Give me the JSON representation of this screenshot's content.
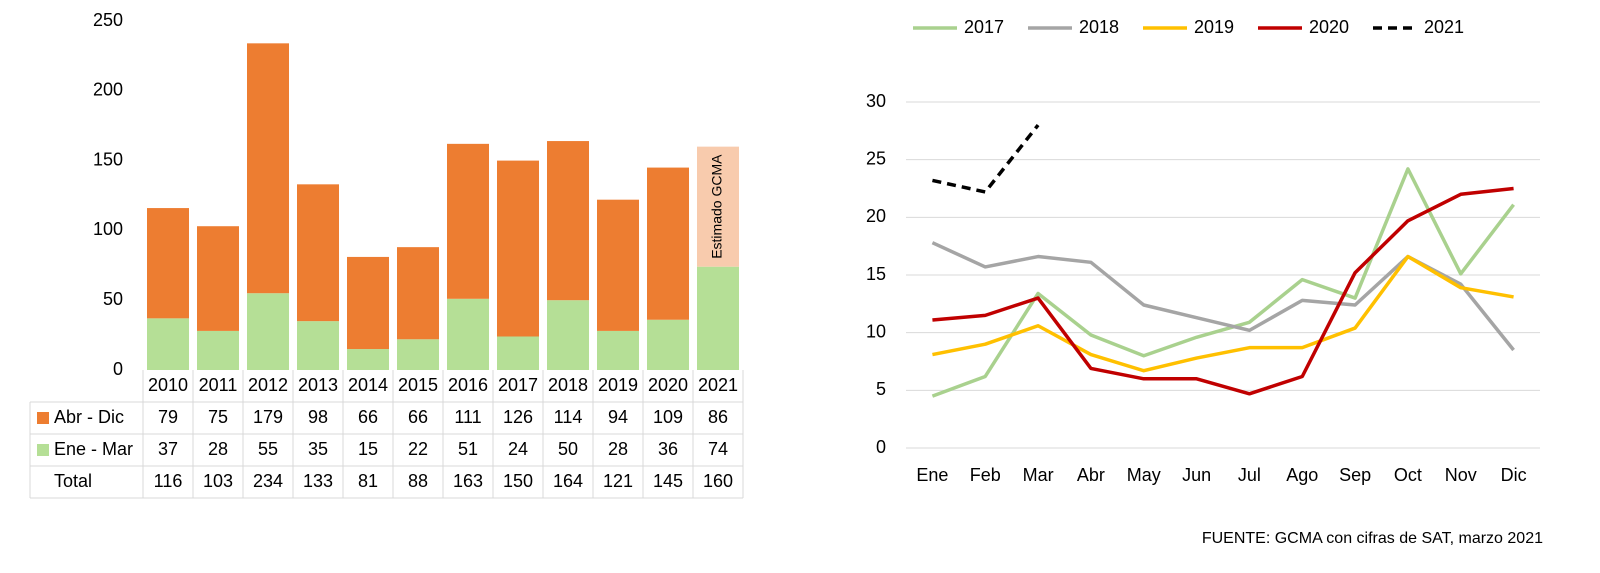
{
  "chart_data": [
    {
      "type": "stacked_bar",
      "categories": [
        "2010",
        "2011",
        "2012",
        "2013",
        "2014",
        "2015",
        "2016",
        "2017",
        "2018",
        "2019",
        "2020",
        "2021"
      ],
      "series": [
        {
          "name": "Ene - Mar",
          "color": "#b5df96",
          "values": [
            37,
            28,
            55,
            35,
            15,
            22,
            51,
            24,
            50,
            28,
            36,
            74
          ]
        },
        {
          "name": "Abr - Dic",
          "color": "#ed7d31",
          "values": [
            79,
            75,
            179,
            98,
            66,
            66,
            111,
            126,
            114,
            94,
            109,
            86
          ],
          "colors": [
            "#ed7d31",
            "#ed7d31",
            "#ed7d31",
            "#ed7d31",
            "#ed7d31",
            "#ed7d31",
            "#ed7d31",
            "#ed7d31",
            "#ed7d31",
            "#ed7d31",
            "#ed7d31",
            "#f8cbad"
          ]
        }
      ],
      "totals_label": "Total",
      "totals": [
        116,
        103,
        234,
        133,
        81,
        88,
        163,
        150,
        164,
        121,
        145,
        160
      ],
      "annotation": "Estimado GCMA",
      "ylim": [
        0,
        250
      ],
      "yticks": [
        0,
        50,
        100,
        150,
        200,
        250
      ],
      "grid": false
    },
    {
      "type": "line",
      "categories": [
        "Ene",
        "Feb",
        "Mar",
        "Abr",
        "May",
        "Jun",
        "Jul",
        "Ago",
        "Sep",
        "Oct",
        "Nov",
        "Dic"
      ],
      "series": [
        {
          "name": "2017",
          "color": "#a9d18e",
          "values": [
            4.5,
            6.2,
            13.4,
            9.8,
            8.0,
            9.6,
            10.9,
            14.6,
            13.0,
            24.2,
            15.1,
            21.1
          ]
        },
        {
          "name": "2018",
          "color": "#a5a5a5",
          "values": [
            17.8,
            15.7,
            16.6,
            16.1,
            12.4,
            11.3,
            10.2,
            12.8,
            12.4,
            16.6,
            14.2,
            8.5
          ]
        },
        {
          "name": "2019",
          "color": "#ffc000",
          "values": [
            8.1,
            9.0,
            10.6,
            8.1,
            6.7,
            7.8,
            8.7,
            8.7,
            10.4,
            16.6,
            13.9,
            13.1
          ]
        },
        {
          "name": "2020",
          "color": "#c00000",
          "values": [
            11.1,
            11.5,
            13.0,
            6.9,
            6.0,
            6.0,
            4.7,
            6.2,
            15.2,
            19.7,
            22.0,
            22.5
          ]
        },
        {
          "name": "2021",
          "color": "#000000",
          "dashed": true,
          "values": [
            23.2,
            22.2,
            28.0,
            null,
            null,
            null,
            null,
            null,
            null,
            null,
            null,
            null
          ]
        }
      ],
      "ylim": [
        0,
        30
      ],
      "yticks": [
        0,
        5,
        10,
        15,
        20,
        25,
        30
      ],
      "grid": true,
      "legend": "top"
    }
  ],
  "source": "FUENTE: GCMA con cifras de SAT, marzo 2021"
}
